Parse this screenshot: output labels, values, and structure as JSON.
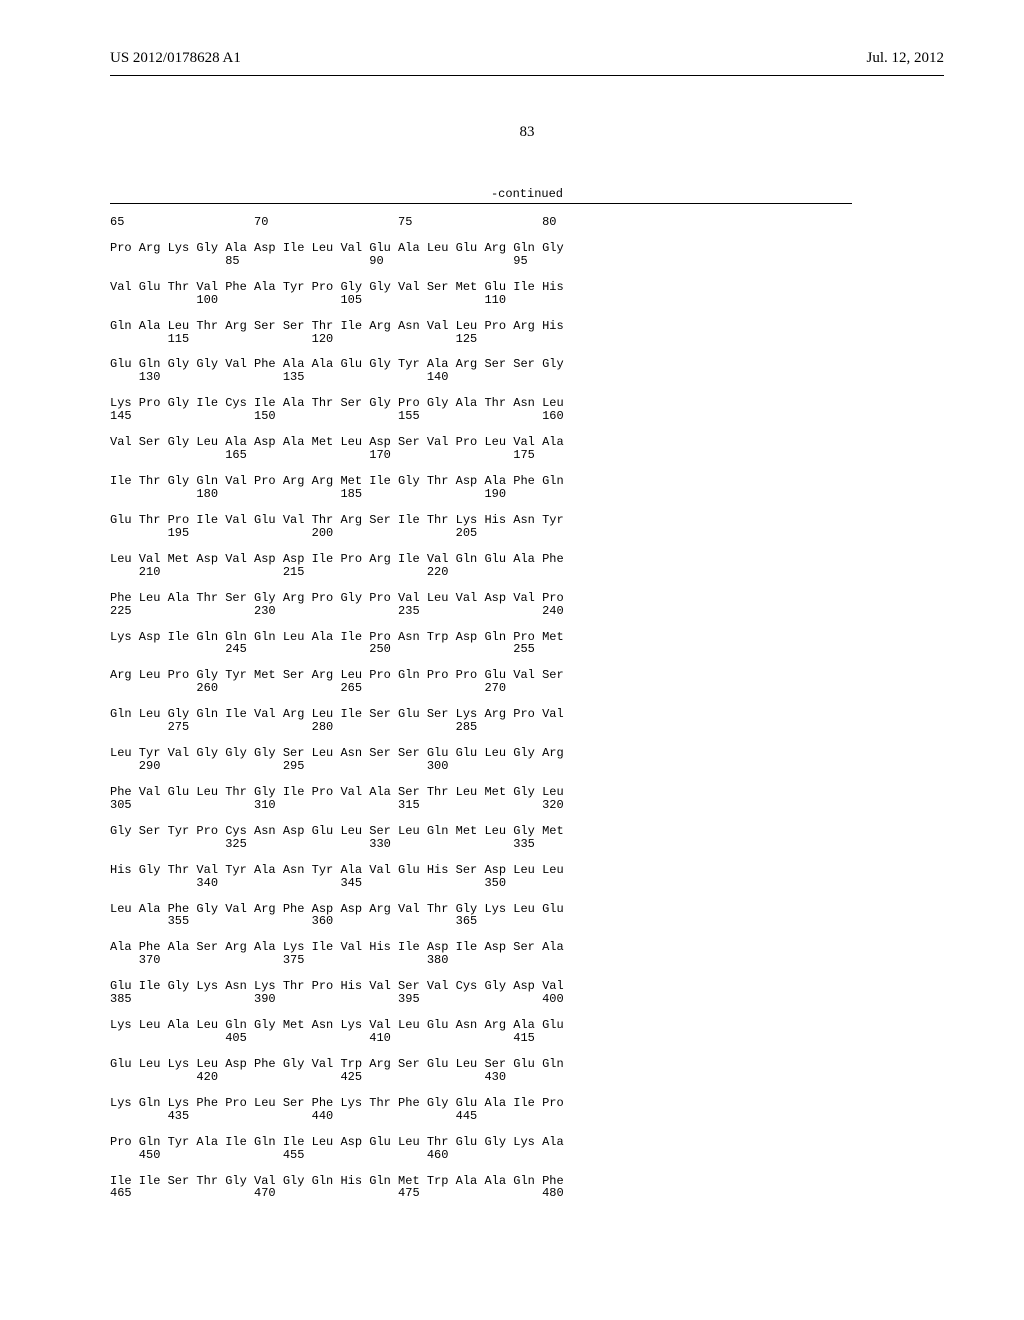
{
  "header": {
    "left": "US 2012/0178628 A1",
    "right": "Jul. 12, 2012"
  },
  "page_number": "83",
  "continued_label": "-continued",
  "sequence": {
    "font_family": "Courier New",
    "font_size_pt": 9,
    "text_color": "#000000",
    "background_color": "#ffffff",
    "blocks": [
      {
        "num_line": "65                  70                  75                  80",
        "res_line": ""
      },
      {
        "res_line": "Pro Arg Lys Gly Ala Asp Ile Leu Val Glu Ala Leu Glu Arg Gln Gly",
        "num_line": "                85                  90                  95"
      },
      {
        "res_line": "Val Glu Thr Val Phe Ala Tyr Pro Gly Gly Val Ser Met Glu Ile His",
        "num_line": "            100                 105                 110"
      },
      {
        "res_line": "Gln Ala Leu Thr Arg Ser Ser Thr Ile Arg Asn Val Leu Pro Arg His",
        "num_line": "        115                 120                 125"
      },
      {
        "res_line": "Glu Gln Gly Gly Val Phe Ala Ala Glu Gly Tyr Ala Arg Ser Ser Gly",
        "num_line": "    130                 135                 140"
      },
      {
        "res_line": "Lys Pro Gly Ile Cys Ile Ala Thr Ser Gly Pro Gly Ala Thr Asn Leu",
        "num_line": "145                 150                 155                 160"
      },
      {
        "res_line": "Val Ser Gly Leu Ala Asp Ala Met Leu Asp Ser Val Pro Leu Val Ala",
        "num_line": "                165                 170                 175"
      },
      {
        "res_line": "Ile Thr Gly Gln Val Pro Arg Arg Met Ile Gly Thr Asp Ala Phe Gln",
        "num_line": "            180                 185                 190"
      },
      {
        "res_line": "Glu Thr Pro Ile Val Glu Val Thr Arg Ser Ile Thr Lys His Asn Tyr",
        "num_line": "        195                 200                 205"
      },
      {
        "res_line": "Leu Val Met Asp Val Asp Asp Ile Pro Arg Ile Val Gln Glu Ala Phe",
        "num_line": "    210                 215                 220"
      },
      {
        "res_line": "Phe Leu Ala Thr Ser Gly Arg Pro Gly Pro Val Leu Val Asp Val Pro",
        "num_line": "225                 230                 235                 240"
      },
      {
        "res_line": "Lys Asp Ile Gln Gln Gln Leu Ala Ile Pro Asn Trp Asp Gln Pro Met",
        "num_line": "                245                 250                 255"
      },
      {
        "res_line": "Arg Leu Pro Gly Tyr Met Ser Arg Leu Pro Gln Pro Pro Glu Val Ser",
        "num_line": "            260                 265                 270"
      },
      {
        "res_line": "Gln Leu Gly Gln Ile Val Arg Leu Ile Ser Glu Ser Lys Arg Pro Val",
        "num_line": "        275                 280                 285"
      },
      {
        "res_line": "Leu Tyr Val Gly Gly Gly Ser Leu Asn Ser Ser Glu Glu Leu Gly Arg",
        "num_line": "    290                 295                 300"
      },
      {
        "res_line": "Phe Val Glu Leu Thr Gly Ile Pro Val Ala Ser Thr Leu Met Gly Leu",
        "num_line": "305                 310                 315                 320"
      },
      {
        "res_line": "Gly Ser Tyr Pro Cys Asn Asp Glu Leu Ser Leu Gln Met Leu Gly Met",
        "num_line": "                325                 330                 335"
      },
      {
        "res_line": "His Gly Thr Val Tyr Ala Asn Tyr Ala Val Glu His Ser Asp Leu Leu",
        "num_line": "            340                 345                 350"
      },
      {
        "res_line": "Leu Ala Phe Gly Val Arg Phe Asp Asp Arg Val Thr Gly Lys Leu Glu",
        "num_line": "        355                 360                 365"
      },
      {
        "res_line": "Ala Phe Ala Ser Arg Ala Lys Ile Val His Ile Asp Ile Asp Ser Ala",
        "num_line": "    370                 375                 380"
      },
      {
        "res_line": "Glu Ile Gly Lys Asn Lys Thr Pro His Val Ser Val Cys Gly Asp Val",
        "num_line": "385                 390                 395                 400"
      },
      {
        "res_line": "Lys Leu Ala Leu Gln Gly Met Asn Lys Val Leu Glu Asn Arg Ala Glu",
        "num_line": "                405                 410                 415"
      },
      {
        "res_line": "Glu Leu Lys Leu Asp Phe Gly Val Trp Arg Ser Glu Leu Ser Glu Gln",
        "num_line": "            420                 425                 430"
      },
      {
        "res_line": "Lys Gln Lys Phe Pro Leu Ser Phe Lys Thr Phe Gly Glu Ala Ile Pro",
        "num_line": "        435                 440                 445"
      },
      {
        "res_line": "Pro Gln Tyr Ala Ile Gln Ile Leu Asp Glu Leu Thr Glu Gly Lys Ala",
        "num_line": "    450                 455                 460"
      },
      {
        "res_line": "Ile Ile Ser Thr Gly Val Gly Gln His Gln Met Trp Ala Ala Gln Phe",
        "num_line": "465                 470                 475                 480"
      }
    ]
  }
}
